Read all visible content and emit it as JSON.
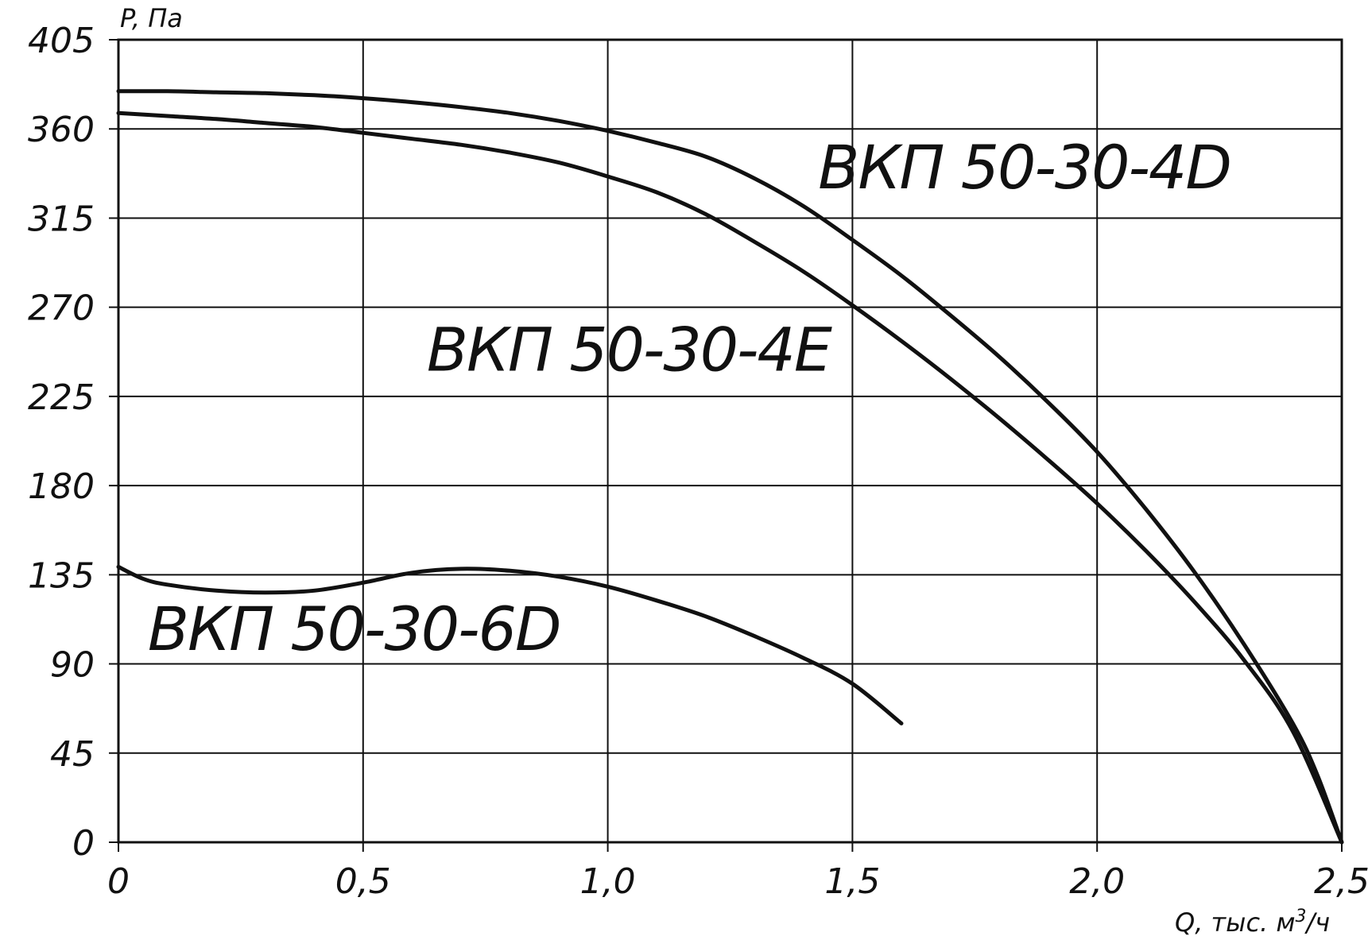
{
  "chart_data": {
    "type": "line",
    "title": "",
    "xlabel": "Q, тыс. м",
    "xlabel_sup": "3",
    "xlabel_suffix": "/ч",
    "ylabel": "P, Па",
    "xlim": [
      0,
      2.5
    ],
    "ylim": [
      0,
      405
    ],
    "x_ticks": [
      0,
      0.5,
      1.0,
      1.5,
      2.0,
      2.5
    ],
    "x_tick_labels": [
      "0",
      "0,5",
      "1,0",
      "1,5",
      "2,0",
      "2,5"
    ],
    "y_ticks": [
      0,
      45,
      90,
      135,
      180,
      225,
      270,
      315,
      360,
      405
    ],
    "y_tick_labels": [
      "0",
      "45",
      "90",
      "135",
      "180",
      "225",
      "270",
      "315",
      "360",
      "405"
    ],
    "grid": true,
    "series": [
      {
        "name": "ВКП 50-30-4D",
        "x": [
          0,
          0.1,
          0.2,
          0.3,
          0.4,
          0.5,
          0.6,
          0.7,
          0.8,
          0.9,
          1.0,
          1.1,
          1.2,
          1.3,
          1.4,
          1.5,
          1.6,
          1.7,
          1.8,
          1.9,
          2.0,
          2.1,
          2.2,
          2.3,
          2.4,
          2.45,
          2.5
        ],
        "y": [
          379,
          379,
          378.5,
          378,
          377,
          375.5,
          373.5,
          371,
          368,
          364,
          359,
          353,
          346,
          335,
          321,
          304,
          286,
          266,
          245,
          222,
          197,
          168,
          136,
          100,
          60,
          34,
          0
        ]
      },
      {
        "name": "ВКП 50-30-4E",
        "x": [
          0,
          0.1,
          0.2,
          0.3,
          0.4,
          0.5,
          0.6,
          0.7,
          0.8,
          0.9,
          1.0,
          1.1,
          1.2,
          1.3,
          1.4,
          1.5,
          1.6,
          1.7,
          1.8,
          1.9,
          2.0,
          2.1,
          2.2,
          2.3,
          2.4,
          2.5
        ],
        "y": [
          368,
          366.5,
          365,
          363,
          361,
          358,
          355,
          352,
          348,
          343,
          336,
          328,
          317,
          303,
          288,
          271,
          253,
          234,
          214,
          193,
          171,
          147,
          121,
          92,
          56,
          0
        ]
      },
      {
        "name": "ВКП 50-30-6D",
        "x": [
          0,
          0.05,
          0.1,
          0.2,
          0.3,
          0.4,
          0.5,
          0.6,
          0.7,
          0.8,
          0.9,
          1.0,
          1.1,
          1.2,
          1.3,
          1.4,
          1.5,
          1.6
        ],
        "y": [
          139,
          133,
          130,
          127,
          126,
          127,
          131,
          136,
          138,
          137,
          134,
          129,
          122,
          114,
          104,
          93,
          80,
          60
        ]
      }
    ],
    "annotations": [
      {
        "text": "ВКП 50-30-4D",
        "series": 0
      },
      {
        "text": "ВКП 50-30-4E",
        "series": 1
      },
      {
        "text": "ВКП 50-30-6D",
        "series": 2
      }
    ]
  }
}
